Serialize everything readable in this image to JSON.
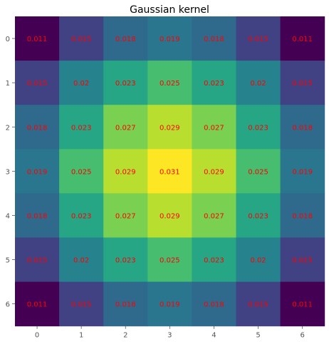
{
  "chart_data": {
    "type": "heatmap",
    "title": "Gaussian kernel",
    "xlabel": "",
    "ylabel": "",
    "x_ticks": [
      "0",
      "1",
      "2",
      "3",
      "4",
      "5",
      "6"
    ],
    "y_ticks": [
      "0",
      "1",
      "2",
      "3",
      "4",
      "5",
      "6"
    ],
    "colormap": "viridis",
    "annotation_color": "#ff0000",
    "values": [
      [
        0.011,
        0.015,
        0.018,
        0.019,
        0.018,
        0.015,
        0.011
      ],
      [
        0.015,
        0.02,
        0.023,
        0.025,
        0.023,
        0.02,
        0.015
      ],
      [
        0.018,
        0.023,
        0.027,
        0.029,
        0.027,
        0.023,
        0.018
      ],
      [
        0.019,
        0.025,
        0.029,
        0.031,
        0.029,
        0.025,
        0.019
      ],
      [
        0.018,
        0.023,
        0.027,
        0.029,
        0.027,
        0.023,
        0.018
      ],
      [
        0.015,
        0.02,
        0.023,
        0.025,
        0.023,
        0.02,
        0.015
      ],
      [
        0.011,
        0.015,
        0.018,
        0.019,
        0.018,
        0.015,
        0.011
      ]
    ],
    "value_range": [
      0.011,
      0.031
    ],
    "grid": false,
    "legend": "none"
  }
}
